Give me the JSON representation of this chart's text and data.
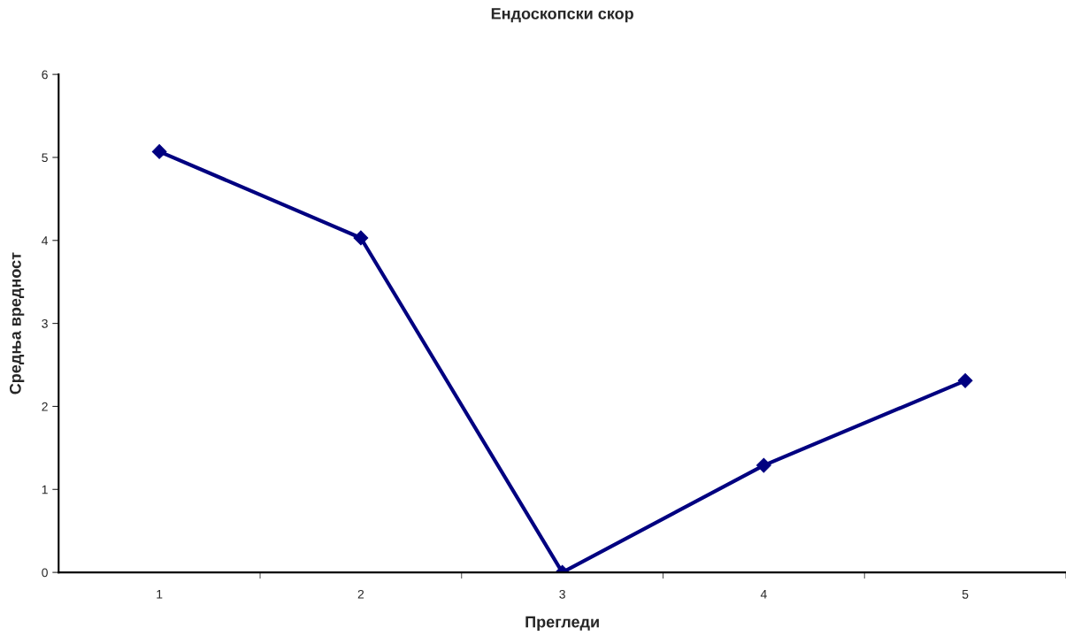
{
  "chart_data": {
    "type": "line",
    "title": "Ендоскопски скор",
    "xlabel": "Прегледи",
    "ylabel": "Средња вредност",
    "categories": [
      "1",
      "2",
      "3",
      "4",
      "5"
    ],
    "series": [
      {
        "color": "#000080",
        "values": [
          5.07,
          4.03,
          0,
          1.29,
          2.31
        ]
      }
    ],
    "ylim": [
      0,
      6
    ],
    "yticks": [
      0,
      1,
      2,
      3,
      4,
      5,
      6
    ],
    "grid": false,
    "legend": false,
    "marker": "diamond",
    "line_style": "solid"
  }
}
